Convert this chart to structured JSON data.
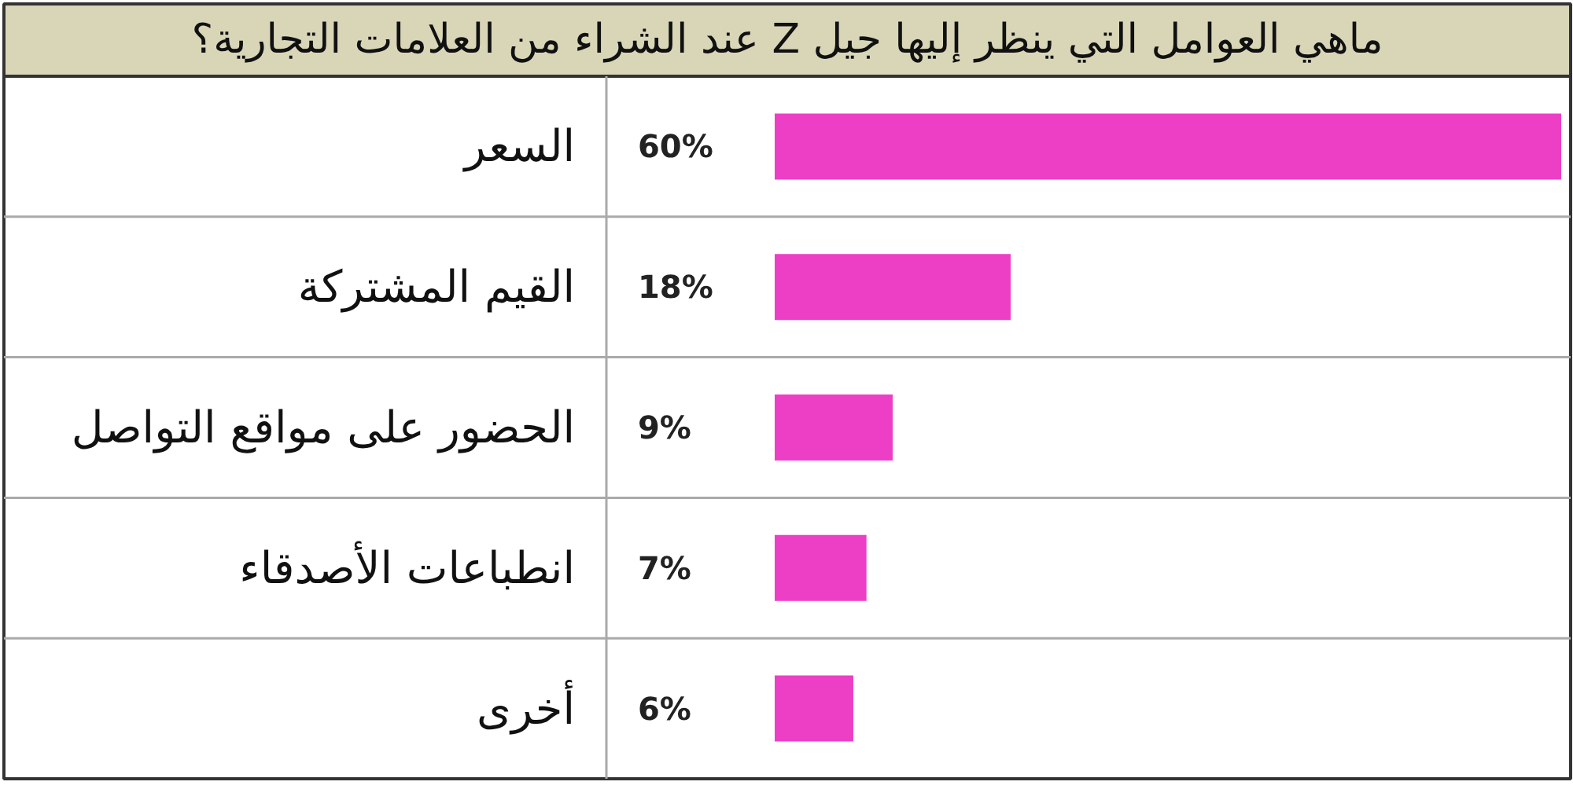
{
  "chart_data": {
    "type": "bar",
    "orientation": "horizontal",
    "title": "ماهي العوامل التي ينظر إليها جيل Z عند الشراء من العلامات التجارية؟",
    "categories": [
      "السعر",
      "القيم المشتركة",
      "الحضور على مواقع التواصل",
      "انطباعات الأصدقاء",
      "أخرى"
    ],
    "values": [
      60,
      18,
      9,
      7,
      6
    ],
    "value_labels": [
      "60%",
      "18%",
      "9%",
      "7%",
      "6%"
    ],
    "color": "#ec3fc6"
  }
}
